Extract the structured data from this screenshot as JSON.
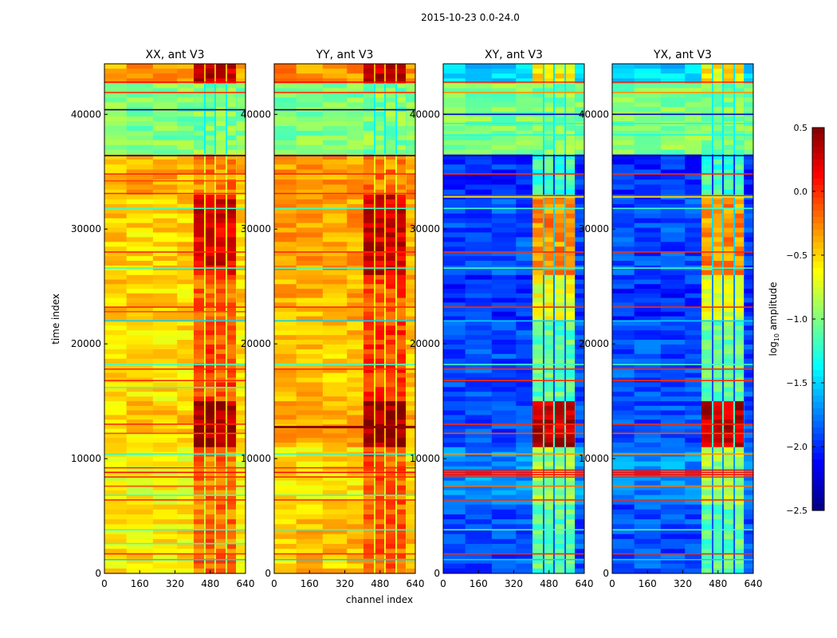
{
  "chart_data": {
    "type": "heatmap",
    "title": "2015-10-23 0.0-24.0",
    "xlabel": "channel index",
    "ylabel": "time index",
    "xlim": [
      0,
      640
    ],
    "ylim": [
      0,
      44400
    ],
    "xticks": [
      "0",
      "160",
      "320",
      "480",
      "640"
    ],
    "yticks": [
      "0",
      "10000",
      "20000",
      "30000",
      "40000"
    ],
    "xtick_values": [
      0,
      160,
      320,
      480,
      640
    ],
    "ytick_values": [
      0,
      10000,
      20000,
      30000,
      40000
    ],
    "colorbar": {
      "label_prefix": "log",
      "label_sub": "10",
      "label_suffix": " amplitude",
      "range": [
        -2.5,
        0.5
      ],
      "ticks": [
        "0.5",
        "0.0",
        "−0.5",
        "−1.0",
        "−1.5",
        "−2.0",
        "−2.5"
      ],
      "tick_values": [
        0.5,
        0.0,
        -0.5,
        -1.0,
        -1.5,
        -2.0,
        -2.5
      ],
      "colormap": "jet"
    },
    "rfi_channel_blocks": [
      [
        405,
        452
      ],
      [
        459,
        499
      ],
      [
        506,
        550
      ],
      [
        557,
        597
      ]
    ],
    "panels": [
      {
        "title": "XX, ant V3",
        "segments": [
          {
            "t": [
              42700,
              44400
            ],
            "bg": -0.35,
            "rfi": 0.3
          },
          {
            "t": [
              36500,
              42700
            ],
            "bg": -1.0,
            "rfi": -1.0
          },
          {
            "t": [
              33000,
              36500
            ],
            "bg": -0.4,
            "rfi": -0.25
          },
          {
            "t": [
              26000,
              33000
            ],
            "bg": -0.5,
            "rfi": 0.2
          },
          {
            "t": [
              22000,
              26000
            ],
            "bg": -0.5,
            "rfi": -0.15
          },
          {
            "t": [
              15000,
              22000
            ],
            "bg": -0.55,
            "rfi": -0.1
          },
          {
            "t": [
              11000,
              15000
            ],
            "bg": -0.5,
            "rfi": 0.4
          },
          {
            "t": [
              6000,
              11000
            ],
            "bg": -0.65,
            "rfi": -0.2
          },
          {
            "t": [
              0,
              6000
            ],
            "bg": -0.55,
            "rfi": -0.2
          }
        ],
        "lines": [
          [
            42800,
            0.1
          ],
          [
            41900,
            0.0
          ],
          [
            40400,
            -2.5
          ],
          [
            36400,
            -2.5
          ],
          [
            34800,
            0.0
          ],
          [
            34200,
            -0.1
          ],
          [
            33100,
            0.0
          ],
          [
            31800,
            -1.2
          ],
          [
            28000,
            0.0
          ],
          [
            26600,
            -1.2
          ],
          [
            23200,
            0.0
          ],
          [
            22800,
            -0.1
          ],
          [
            22000,
            -1.5
          ],
          [
            18200,
            -1.2
          ],
          [
            17800,
            0.0
          ],
          [
            16800,
            0.0
          ],
          [
            16200,
            -1.2
          ],
          [
            13000,
            0.0
          ],
          [
            12200,
            -0.1
          ],
          [
            10400,
            -1.3
          ],
          [
            9200,
            0.0
          ],
          [
            8800,
            0.1
          ],
          [
            8400,
            0.0
          ],
          [
            7600,
            -0.1
          ],
          [
            6800,
            -1.2
          ],
          [
            6400,
            0.0
          ],
          [
            3800,
            -1.2
          ],
          [
            2600,
            -1.2
          ],
          [
            1700,
            0.0
          ],
          [
            1200,
            -1.5
          ]
        ]
      },
      {
        "title": "YY, ant V3",
        "segments": [
          {
            "t": [
              42700,
              44400
            ],
            "bg": -0.3,
            "rfi": 0.3
          },
          {
            "t": [
              36500,
              42700
            ],
            "bg": -1.0,
            "rfi": -1.0
          },
          {
            "t": [
              33000,
              36500
            ],
            "bg": -0.35,
            "rfi": -0.25
          },
          {
            "t": [
              26000,
              33000
            ],
            "bg": -0.35,
            "rfi": 0.25
          },
          {
            "t": [
              22000,
              26000
            ],
            "bg": -0.4,
            "rfi": -0.1
          },
          {
            "t": [
              15000,
              22000
            ],
            "bg": -0.45,
            "rfi": -0.05
          },
          {
            "t": [
              11000,
              15000
            ],
            "bg": -0.4,
            "rfi": 0.4
          },
          {
            "t": [
              6000,
              11000
            ],
            "bg": -0.55,
            "rfi": -0.15
          },
          {
            "t": [
              0,
              6000
            ],
            "bg": -0.45,
            "rfi": -0.15
          }
        ],
        "lines": [
          [
            42800,
            0.1
          ],
          [
            41900,
            0.0
          ],
          [
            40400,
            -2.5
          ],
          [
            36400,
            -2.5
          ],
          [
            34800,
            0.0
          ],
          [
            33100,
            0.0
          ],
          [
            31800,
            -1.2
          ],
          [
            28000,
            0.0
          ],
          [
            26600,
            -1.2
          ],
          [
            23200,
            0.0
          ],
          [
            22000,
            -1.5
          ],
          [
            18200,
            -1.2
          ],
          [
            17800,
            0.0
          ],
          [
            12800,
            0.45
          ],
          [
            12700,
            0.45
          ],
          [
            10400,
            -1.3
          ],
          [
            9200,
            0.0
          ],
          [
            8800,
            0.1
          ],
          [
            8400,
            0.0
          ],
          [
            6800,
            -1.2
          ],
          [
            6400,
            0.0
          ],
          [
            3800,
            -1.2
          ],
          [
            1700,
            0.0
          ],
          [
            1200,
            -1.5
          ]
        ]
      },
      {
        "title": "XY, ant V3",
        "segments": [
          {
            "t": [
              42700,
              44400
            ],
            "bg": -1.5,
            "rfi": -0.6
          },
          {
            "t": [
              36500,
              42700
            ],
            "bg": -1.0,
            "rfi": -1.0
          },
          {
            "t": [
              33000,
              36500
            ],
            "bg": -2.0,
            "rfi": -1.2
          },
          {
            "t": [
              26000,
              33000
            ],
            "bg": -1.9,
            "rfi": -0.3
          },
          {
            "t": [
              22000,
              26000
            ],
            "bg": -2.0,
            "rfi": -0.7
          },
          {
            "t": [
              15000,
              22000
            ],
            "bg": -1.9,
            "rfi": -1.1
          },
          {
            "t": [
              11000,
              15000
            ],
            "bg": -1.9,
            "rfi": 0.3
          },
          {
            "t": [
              6000,
              11000
            ],
            "bg": -1.7,
            "rfi": -0.9
          },
          {
            "t": [
              0,
              6000
            ],
            "bg": -1.9,
            "rfi": -1.1
          }
        ],
        "lines": [
          [
            42800,
            0.0
          ],
          [
            41900,
            -0.3
          ],
          [
            40000,
            -2.3
          ],
          [
            39200,
            -1.3
          ],
          [
            38200,
            -1.3
          ],
          [
            36400,
            -2.5
          ],
          [
            34800,
            0.0
          ],
          [
            32900,
            0.0
          ],
          [
            32800,
            -0.8
          ],
          [
            31800,
            -1.2
          ],
          [
            28000,
            0.0
          ],
          [
            26600,
            -1.2
          ],
          [
            23200,
            0.0
          ],
          [
            22000,
            -1.5
          ],
          [
            18200,
            -1.2
          ],
          [
            17800,
            0.0
          ],
          [
            16800,
            0.0
          ],
          [
            13000,
            0.0
          ],
          [
            12200,
            -0.1
          ],
          [
            10400,
            -0.3
          ],
          [
            9000,
            0.1
          ],
          [
            8800,
            0.1
          ],
          [
            8600,
            0.1
          ],
          [
            8400,
            0.0
          ],
          [
            7600,
            -0.2
          ],
          [
            6400,
            0.0
          ],
          [
            3800,
            -1.2
          ],
          [
            1700,
            0.0
          ],
          [
            1200,
            -1.5
          ]
        ]
      },
      {
        "title": "YX, ant V3",
        "segments": [
          {
            "t": [
              42700,
              44400
            ],
            "bg": -1.5,
            "rfi": -0.6
          },
          {
            "t": [
              36500,
              42700
            ],
            "bg": -1.0,
            "rfi": -1.0
          },
          {
            "t": [
              33000,
              36500
            ],
            "bg": -2.0,
            "rfi": -1.2
          },
          {
            "t": [
              26000,
              33000
            ],
            "bg": -1.9,
            "rfi": -0.3
          },
          {
            "t": [
              22000,
              26000
            ],
            "bg": -2.0,
            "rfi": -0.7
          },
          {
            "t": [
              15000,
              22000
            ],
            "bg": -1.9,
            "rfi": -1.1
          },
          {
            "t": [
              11000,
              15000
            ],
            "bg": -1.9,
            "rfi": 0.3
          },
          {
            "t": [
              6000,
              11000
            ],
            "bg": -1.7,
            "rfi": -0.9
          },
          {
            "t": [
              0,
              6000
            ],
            "bg": -1.9,
            "rfi": -1.1
          }
        ],
        "lines": [
          [
            42800,
            0.0
          ],
          [
            41900,
            -0.3
          ],
          [
            40000,
            -2.3
          ],
          [
            39200,
            -1.3
          ],
          [
            38200,
            -1.3
          ],
          [
            36400,
            -2.5
          ],
          [
            34800,
            0.0
          ],
          [
            32900,
            0.0
          ],
          [
            32800,
            -0.8
          ],
          [
            31800,
            -1.2
          ],
          [
            28000,
            0.0
          ],
          [
            26600,
            -1.2
          ],
          [
            23200,
            0.0
          ],
          [
            22000,
            -1.5
          ],
          [
            18200,
            -1.2
          ],
          [
            17800,
            0.0
          ],
          [
            16800,
            0.0
          ],
          [
            13000,
            0.0
          ],
          [
            12200,
            -0.1
          ],
          [
            10400,
            -0.3
          ],
          [
            9000,
            0.1
          ],
          [
            8800,
            0.1
          ],
          [
            8600,
            0.1
          ],
          [
            8400,
            0.0
          ],
          [
            7600,
            -0.2
          ],
          [
            6400,
            0.0
          ],
          [
            3800,
            -1.2
          ],
          [
            1700,
            0.0
          ],
          [
            1200,
            -1.5
          ]
        ]
      }
    ]
  }
}
